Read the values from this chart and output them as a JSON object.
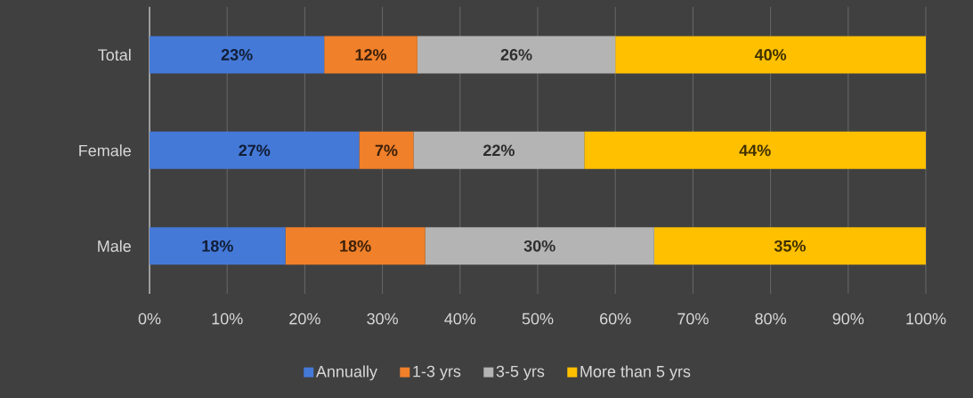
{
  "chart_data": {
    "type": "bar",
    "orientation": "horizontal",
    "stacked": true,
    "categories": [
      "Total",
      "Female",
      "Male"
    ],
    "series": [
      {
        "name": "Annually",
        "color": "#4579d8",
        "values": [
          22.5,
          27,
          17.5
        ],
        "value_labels": [
          "23%",
          "27%",
          "18%"
        ]
      },
      {
        "name": "1-3 yrs",
        "color": "#f0802a",
        "values": [
          12,
          7,
          18
        ],
        "value_labels": [
          "12%",
          "7%",
          "18%"
        ]
      },
      {
        "name": "3-5 yrs",
        "color": "#b4b4b4",
        "values": [
          25.5,
          22,
          29.5
        ],
        "value_labels": [
          "26%",
          "22%",
          "30%"
        ]
      },
      {
        "name": "More than 5 yrs",
        "color": "#ffc000",
        "values": [
          40,
          44,
          35
        ],
        "value_labels": [
          "40%",
          "44%",
          "35%"
        ]
      }
    ],
    "xlim": [
      0,
      100
    ],
    "xticks": [
      {
        "value": 0,
        "label": "0%"
      },
      {
        "value": 10,
        "label": "10%"
      },
      {
        "value": 20,
        "label": "20%"
      },
      {
        "value": 30,
        "label": "30%"
      },
      {
        "value": 40,
        "label": "40%"
      },
      {
        "value": 50,
        "label": "50%"
      },
      {
        "value": 60,
        "label": "60%"
      },
      {
        "value": 70,
        "label": "70%"
      },
      {
        "value": 80,
        "label": "80%"
      },
      {
        "value": 90,
        "label": "90%"
      },
      {
        "value": 100,
        "label": "100%"
      }
    ],
    "grid": "x",
    "legend": "bottom"
  }
}
